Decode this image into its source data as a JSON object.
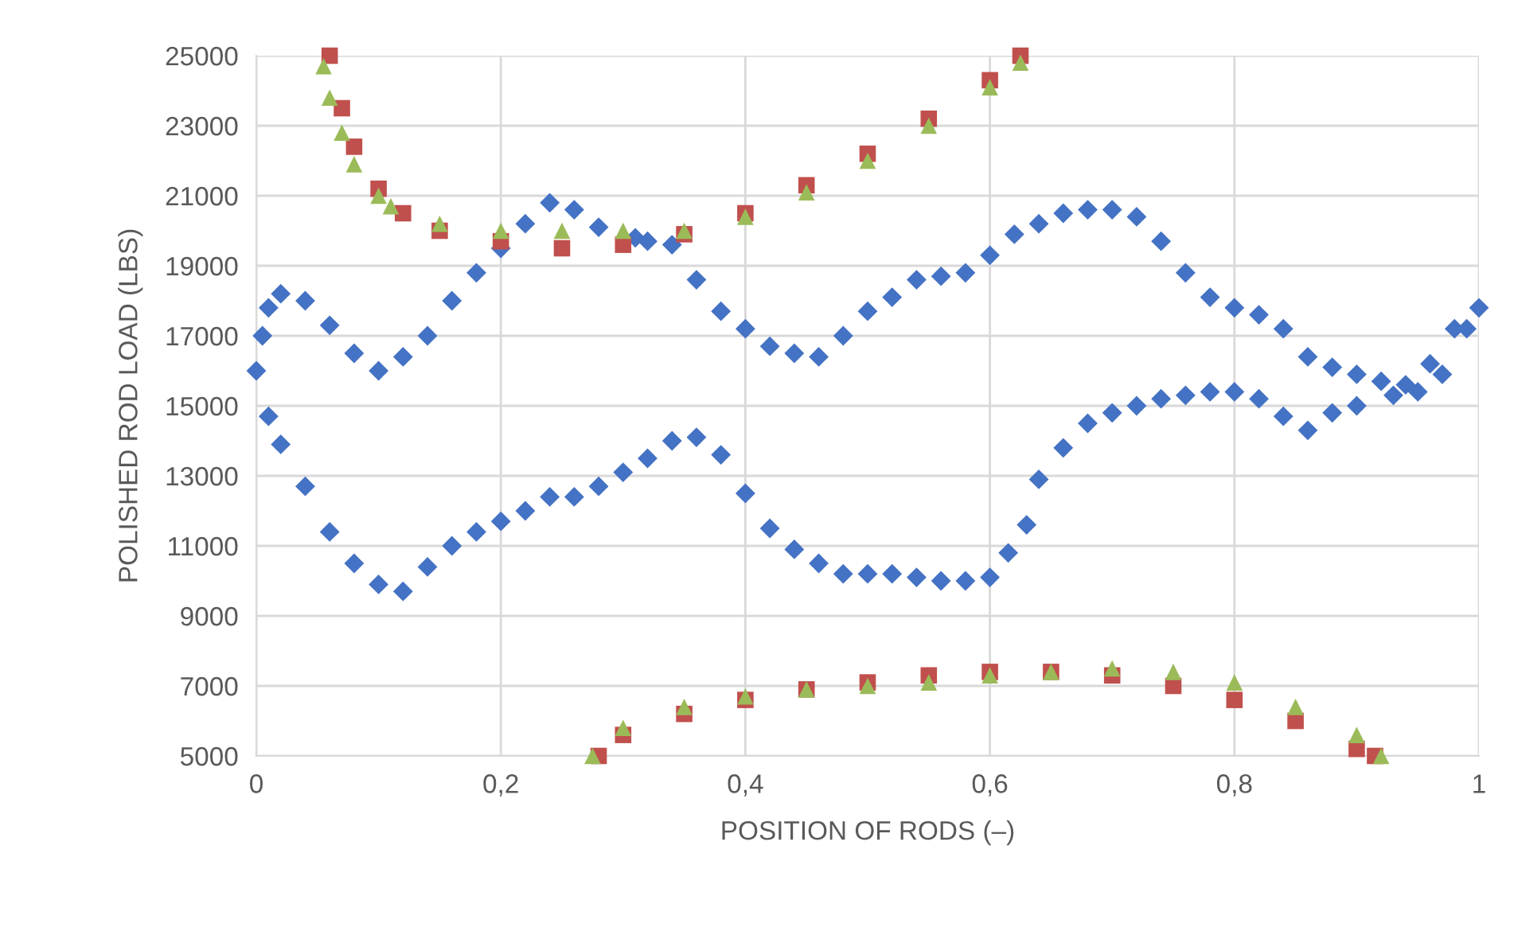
{
  "chart_data": {
    "type": "scatter",
    "xlabel": "POSITION OF RODS (–)",
    "ylabel": "POLISHED ROD LOAD (LBS)",
    "xlim": [
      0,
      1
    ],
    "ylim": [
      5000,
      25000
    ],
    "xticks": [
      0,
      {
        "value": 0.2,
        "label": "0,2"
      },
      {
        "value": 0.4,
        "label": "0,4"
      },
      {
        "value": 0.6,
        "label": "0,6"
      },
      {
        "value": 0.8,
        "label": "0,8"
      },
      1
    ],
    "yticks": [
      5000,
      7000,
      9000,
      11000,
      13000,
      15000,
      17000,
      19000,
      21000,
      23000,
      25000
    ],
    "grid": true,
    "legend": false,
    "series": [
      {
        "color": "#4472c4",
        "marker": "diamond",
        "x": [
          0,
          0.005,
          0.01,
          0.02,
          0.04,
          0.06,
          0.08,
          0.1,
          0.12,
          0.14,
          0.16,
          0.18,
          0.2,
          0.22,
          0.24,
          0.26,
          0.28,
          0.31,
          0.32,
          0.34,
          0.36,
          0.38,
          0.4,
          0.42,
          0.44,
          0.46,
          0.48,
          0.5,
          0.52,
          0.54,
          0.56,
          0.58,
          0.6,
          0.62,
          0.64,
          0.66,
          0.68,
          0.7,
          0.72,
          0.74,
          0.76,
          0.78,
          0.8,
          0.82,
          0.84,
          0.86,
          0.88,
          0.9,
          0.92,
          0.94,
          0.96,
          0.98,
          1.0,
          0.99,
          0.97,
          0.95,
          0.93,
          0.9,
          0.88,
          0.86,
          0.84,
          0.82,
          0.8,
          0.78,
          0.76,
          0.74,
          0.72,
          0.7,
          0.68,
          0.66,
          0.64,
          0.63,
          0.615,
          0.6,
          0.58,
          0.56,
          0.54,
          0.52,
          0.5,
          0.48,
          0.46,
          0.44,
          0.42,
          0.4,
          0.38,
          0.36,
          0.34,
          0.32,
          0.3,
          0.28,
          0.26,
          0.24,
          0.22,
          0.2,
          0.18,
          0.16,
          0.14,
          0.12,
          0.1,
          0.08,
          0.06,
          0.04,
          0.02,
          0.01
        ],
        "values": [
          16000,
          17000,
          17800,
          18200,
          18000,
          17300,
          16500,
          16000,
          16400,
          17000,
          18000,
          18800,
          19500,
          20200,
          20800,
          20600,
          20100,
          19800,
          19700,
          19600,
          18600,
          17700,
          17200,
          16700,
          16500,
          16400,
          17000,
          17700,
          18100,
          18600,
          18700,
          18800,
          19300,
          19900,
          20200,
          20500,
          20600,
          20600,
          20400,
          19700,
          18800,
          18100,
          17800,
          17600,
          17200,
          16400,
          16100,
          15900,
          15700,
          15600,
          16200,
          17200,
          17800,
          17200,
          15900,
          15400,
          15300,
          15000,
          14800,
          14300,
          14700,
          15200,
          15400,
          15400,
          15300,
          15200,
          15000,
          14800,
          14500,
          13800,
          12900,
          11600,
          10800,
          10100,
          10000,
          10000,
          10100,
          10200,
          10200,
          10200,
          10500,
          10900,
          11500,
          12500,
          13600,
          14100,
          14000,
          13500,
          13100,
          12700,
          12400,
          12400,
          12000,
          11700,
          11400,
          11000,
          10400,
          9700,
          9900,
          10500,
          11400,
          12700,
          13900,
          14700
        ]
      },
      {
        "color": "#c0504d",
        "marker": "square",
        "x": [
          0.06,
          0.07,
          0.08,
          0.1,
          0.12,
          0.15,
          0.2,
          0.25,
          0.3,
          0.35,
          0.4,
          0.45,
          0.5,
          0.55,
          0.6,
          0.625,
          0.28,
          0.3,
          0.35,
          0.4,
          0.45,
          0.5,
          0.55,
          0.6,
          0.65,
          0.7,
          0.75,
          0.8,
          0.85,
          0.9,
          0.915
        ],
        "values": [
          25000,
          23500,
          22400,
          21200,
          20500,
          20000,
          19700,
          19500,
          19600,
          19900,
          20500,
          21300,
          22200,
          23200,
          24300,
          25000,
          5000,
          5600,
          6200,
          6600,
          6900,
          7100,
          7300,
          7400,
          7400,
          7300,
          7000,
          6600,
          6000,
          5200,
          5000
        ]
      },
      {
        "color": "#9bbb59",
        "marker": "triangle",
        "x": [
          0.055,
          0.06,
          0.07,
          0.08,
          0.1,
          0.11,
          0.15,
          0.2,
          0.25,
          0.3,
          0.35,
          0.4,
          0.45,
          0.5,
          0.55,
          0.6,
          0.625,
          0.275,
          0.3,
          0.35,
          0.4,
          0.45,
          0.5,
          0.55,
          0.6,
          0.65,
          0.7,
          0.75,
          0.8,
          0.85,
          0.9,
          0.92
        ],
        "values": [
          24700,
          23800,
          22800,
          21900,
          21000,
          20700,
          20200,
          20000,
          20000,
          20000,
          20000,
          20400,
          21100,
          22000,
          23000,
          24100,
          24800,
          5000,
          5800,
          6400,
          6700,
          6900,
          7000,
          7100,
          7300,
          7400,
          7500,
          7400,
          7100,
          6400,
          5600,
          5000
        ]
      }
    ]
  }
}
